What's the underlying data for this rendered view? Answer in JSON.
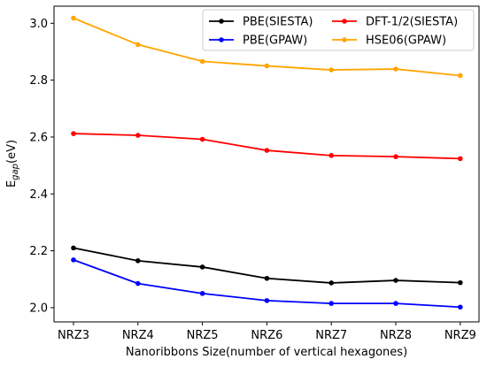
{
  "chart_data": {
    "type": "line",
    "xlabel": "Nanoribbons Size(number of vertical hexagones)",
    "ylabel_main": "E",
    "ylabel_sub": "gap",
    "ylabel_unit": "(eV)",
    "categories": [
      "NRZ3",
      "NRZ4",
      "NRZ5",
      "NRZ6",
      "NRZ7",
      "NRZ8",
      "NRZ9"
    ],
    "ylim": [
      1.95,
      3.06
    ],
    "yticks": [
      2.0,
      2.2,
      2.4,
      2.6,
      2.8,
      3.0
    ],
    "ytick_labels": [
      "2.0",
      "2.2",
      "2.4",
      "2.6",
      "2.8",
      "3.0"
    ],
    "grid": false,
    "legend_position": "top-right",
    "series": [
      {
        "name": "PBE(SIESTA)",
        "color": "#000000",
        "values": [
          2.21,
          2.165,
          2.143,
          2.103,
          2.087,
          2.096,
          2.088
        ]
      },
      {
        "name": "PBE(GPAW)",
        "color": "#0000ff",
        "values": [
          2.168,
          2.085,
          2.05,
          2.025,
          2.015,
          2.015,
          2.002
        ]
      },
      {
        "name": "DFT-1/2(SIESTA)",
        "color": "#ff0000",
        "values": [
          2.612,
          2.606,
          2.592,
          2.553,
          2.535,
          2.531,
          2.524
        ]
      },
      {
        "name": "HSE06(GPAW)",
        "color": "#ffa500",
        "values": [
          3.018,
          2.925,
          2.866,
          2.85,
          2.836,
          2.839,
          2.816
        ]
      }
    ]
  }
}
